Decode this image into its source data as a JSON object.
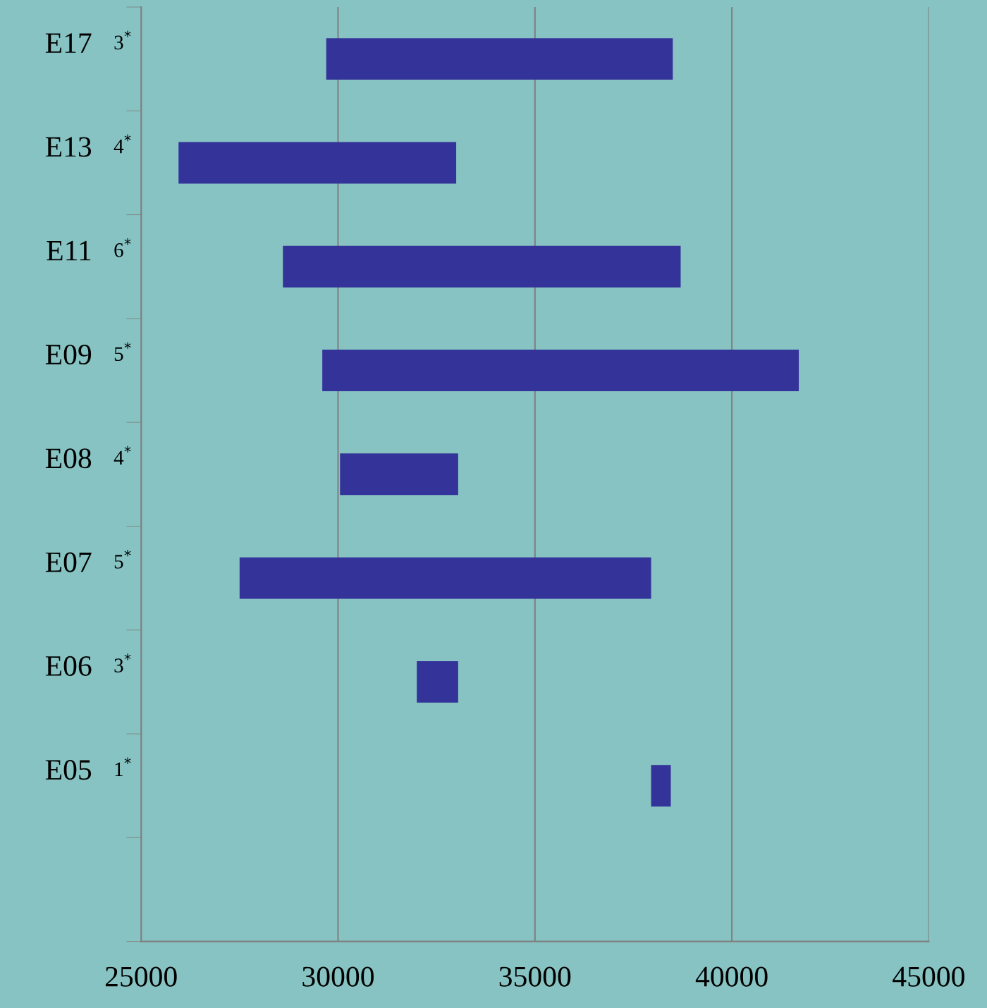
{
  "chart_data": {
    "type": "bar",
    "orientation": "horizontal",
    "categories": [
      "E17",
      "E13",
      "E11",
      "E09",
      "E08",
      "E07",
      "E06",
      "E05",
      null
    ],
    "base": [
      29700,
      25950,
      28600,
      29600,
      30050,
      27500,
      32000,
      37950,
      null
    ],
    "values": [
      8800,
      7050,
      10100,
      12100,
      3000,
      10450,
      1050,
      500,
      null
    ],
    "color": "#343399",
    "xlim": [
      25000,
      45000
    ],
    "xticks": [
      25000,
      30000,
      35000,
      40000,
      45000
    ],
    "grid": "x",
    "annotations": [
      "3$^{*}$",
      "4$^{*}$",
      "6$^{*}$",
      "5$^{*}$",
      "4$^{*}$",
      "5$^{*}$",
      "3$^{*}$",
      "1$^{*}$"
    ]
  }
}
